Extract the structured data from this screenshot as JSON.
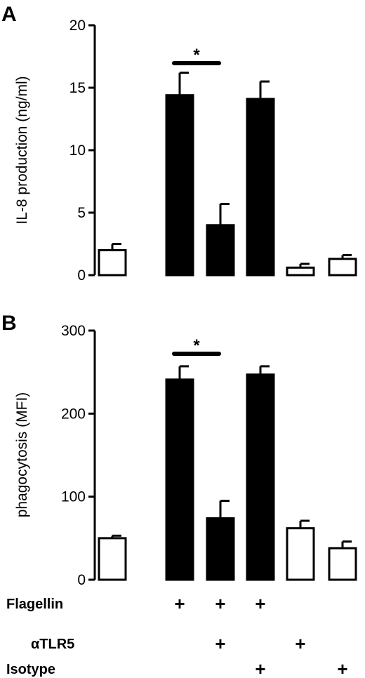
{
  "chart_data": [
    {
      "panel": "A",
      "type": "bar",
      "ylabel": "IL-8 production (ng/ml)",
      "ylim": [
        0,
        20
      ],
      "yticks": [
        0,
        5,
        10,
        15,
        20
      ],
      "values": [
        2.0,
        14.4,
        4.0,
        14.1,
        0.6,
        1.3
      ],
      "errors": [
        0.5,
        1.8,
        1.7,
        1.4,
        0.3,
        0.3
      ],
      "fills": [
        "white",
        "black",
        "black",
        "black",
        "white",
        "white"
      ],
      "significance": {
        "label": "*",
        "between": [
          1,
          2
        ]
      }
    },
    {
      "panel": "B",
      "type": "bar",
      "ylabel": "phagocytosis (MFI)",
      "ylim": [
        0,
        300
      ],
      "yticks": [
        0,
        100,
        200,
        300
      ],
      "values": [
        50,
        241,
        74,
        247,
        62,
        38
      ],
      "errors": [
        3,
        16,
        21,
        10,
        9,
        8
      ],
      "fills": [
        "white",
        "black",
        "black",
        "black",
        "white",
        "white"
      ],
      "significance": {
        "label": "*",
        "between": [
          1,
          2
        ]
      }
    }
  ],
  "conditions": [
    {
      "label": "Flagellin",
      "marks": [
        false,
        true,
        true,
        true,
        false,
        false
      ]
    },
    {
      "label": "αTLR5",
      "marks": [
        false,
        false,
        true,
        false,
        true,
        false
      ]
    },
    {
      "label": "Isotype",
      "marks": [
        false,
        false,
        false,
        true,
        false,
        true
      ]
    }
  ],
  "plus_symbol": "+",
  "colors": {
    "filled": "#000000",
    "open": "#ffffff",
    "stroke": "#000000"
  }
}
